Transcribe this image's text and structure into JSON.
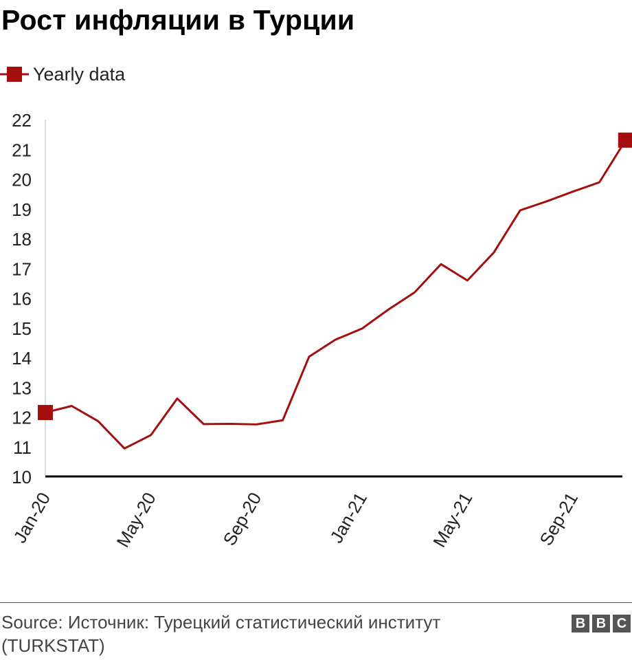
{
  "title": "Рост инфляции в Турции",
  "legend": {
    "label": "Yearly data"
  },
  "source": "Source: Источник: Турецкий статистический институт (TURKSTAT)",
  "logo": {
    "letters": [
      "B",
      "B",
      "C"
    ]
  },
  "colors": {
    "series": "#a50e0e",
    "axis": "#000000",
    "text": "#222222"
  },
  "chart_data": {
    "type": "line",
    "title": "Рост инфляции в Турции",
    "xlabel": "",
    "ylabel": "",
    "ylim": [
      10,
      22
    ],
    "y_ticks": [
      10,
      11,
      12,
      13,
      14,
      15,
      16,
      17,
      18,
      19,
      20,
      21,
      22
    ],
    "x_tick_labels": [
      {
        "index": 0,
        "label": "Jan-20"
      },
      {
        "index": 4,
        "label": "May-20"
      },
      {
        "index": 8,
        "label": "Sep-20"
      },
      {
        "index": 12,
        "label": "Jan-21"
      },
      {
        "index": 16,
        "label": "May-21"
      },
      {
        "index": 20,
        "label": "Sep-21"
      }
    ],
    "grid": false,
    "legend_position": "top-left",
    "series": [
      {
        "name": "Yearly data",
        "x": [
          "Jan-20",
          "Feb-20",
          "Mar-20",
          "Apr-20",
          "May-20",
          "Jun-20",
          "Jul-20",
          "Aug-20",
          "Sep-20",
          "Oct-20",
          "Nov-20",
          "Dec-20",
          "Jan-21",
          "Feb-21",
          "Mar-21",
          "Apr-21",
          "May-21",
          "Jun-21",
          "Jul-21",
          "Aug-21",
          "Sep-21",
          "Oct-21",
          "Nov-21"
        ],
        "values": [
          12.15,
          12.37,
          11.86,
          10.94,
          11.39,
          12.62,
          11.76,
          11.77,
          11.75,
          11.89,
          14.03,
          14.6,
          14.97,
          15.61,
          16.19,
          17.14,
          16.59,
          17.53,
          18.95,
          19.25,
          19.58,
          19.89,
          21.31
        ],
        "markers": "endpoints"
      }
    ]
  }
}
